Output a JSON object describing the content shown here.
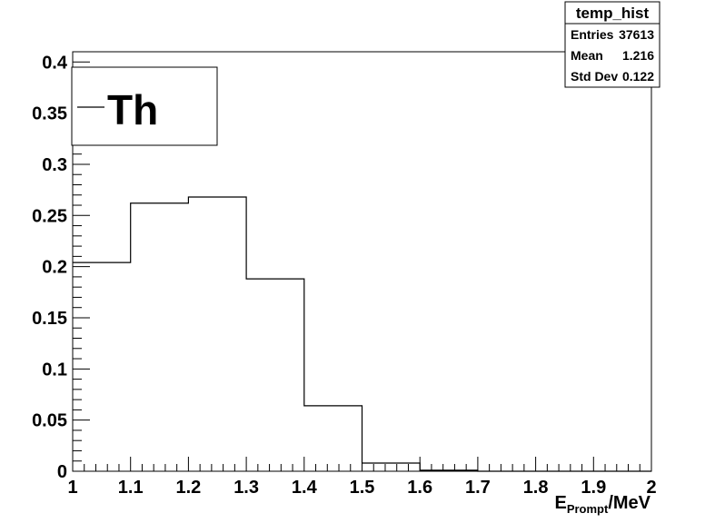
{
  "chart_data": {
    "type": "bar",
    "style": "histogram-step",
    "x_bin_edges": [
      1.0,
      1.1,
      1.2,
      1.3,
      1.4,
      1.5,
      1.6,
      1.7,
      1.8,
      1.9,
      2.0
    ],
    "values": [
      0.204,
      0.262,
      0.268,
      0.188,
      0.064,
      0.008,
      0.001,
      0.0,
      0.0,
      0.0
    ],
    "xlim": [
      1,
      2
    ],
    "ylim": [
      0,
      0.41
    ],
    "x_ticks": [
      1,
      1.1,
      1.2,
      1.3,
      1.4,
      1.5,
      1.6,
      1.7,
      1.8,
      1.9,
      2
    ],
    "x_tick_labels": [
      "1",
      "1.1",
      "1.2",
      "1.3",
      "1.4",
      "1.5",
      "1.6",
      "1.7",
      "1.8",
      "1.9",
      "2"
    ],
    "y_ticks": [
      0,
      0.05,
      0.1,
      0.15,
      0.2,
      0.25,
      0.3,
      0.35,
      0.4
    ],
    "y_tick_labels": [
      "0",
      "0.05",
      "0.1",
      "0.15",
      "0.2",
      "0.25",
      "0.3",
      "0.35",
      "0.4"
    ],
    "xlabel": {
      "main": "E",
      "sub": "Prompt",
      "suffix": "/MeV"
    },
    "ylabel": "",
    "title": "",
    "grid": false,
    "legend": {
      "placement": "top-left",
      "entries": [
        {
          "label": "Th"
        }
      ]
    },
    "stats_box": {
      "placement": "top-right",
      "title": "temp_hist",
      "rows": [
        {
          "label": "Entries",
          "value": "37613"
        },
        {
          "label": "Mean",
          "value": "1.216"
        },
        {
          "label": "Std Dev",
          "value": "0.122"
        }
      ]
    },
    "line_color": "#000000"
  }
}
